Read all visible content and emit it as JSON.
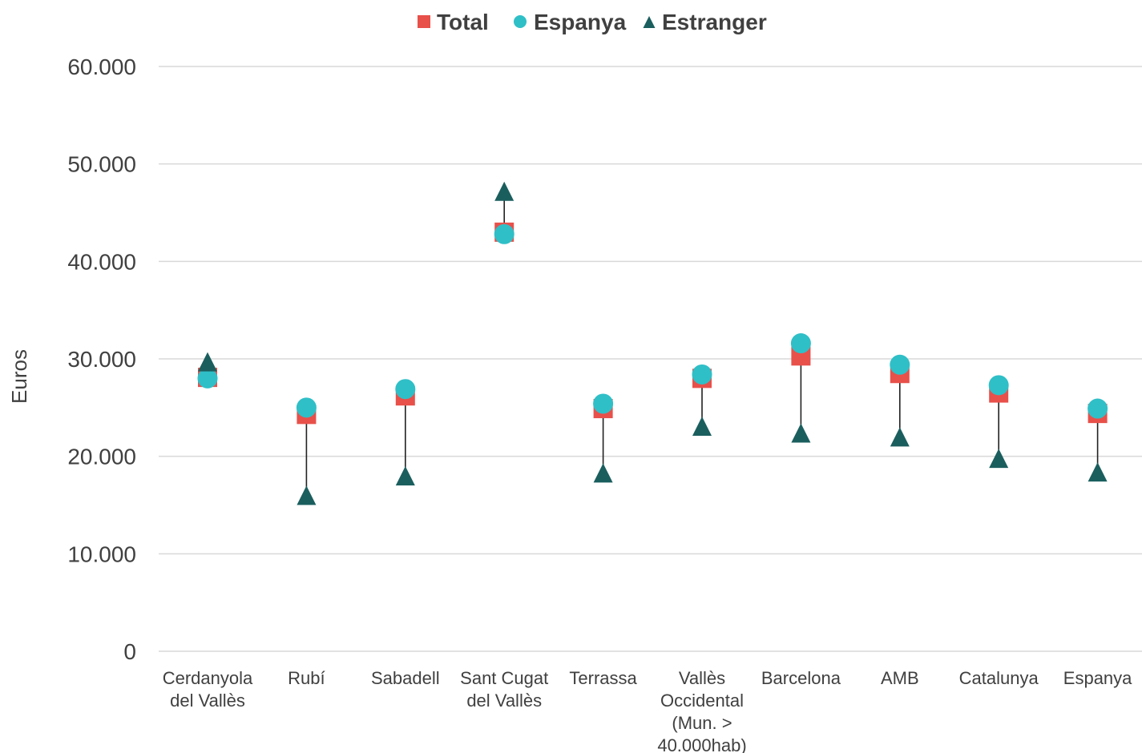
{
  "chart_data": {
    "type": "scatter",
    "ylabel": "Euros",
    "ylim": [
      0,
      60000
    ],
    "yticks": [
      0,
      10000,
      20000,
      30000,
      40000,
      50000,
      60000
    ],
    "ytick_labels": [
      "0",
      "10.000",
      "20.000",
      "30.000",
      "40.000",
      "50.000",
      "60.000"
    ],
    "grid": true,
    "legend_position": "top-center",
    "categories": [
      "Cerdanyola del Vallès",
      "Rubí",
      "Sabadell",
      "Sant Cugat del Vallès",
      "Terrassa",
      "Vallès Occidental (Mun. > 40.000hab)",
      "Barcelona",
      "AMB",
      "Catalunya",
      "Espanya"
    ],
    "category_label_lines": [
      [
        "Cerdanyola",
        "del Vallès"
      ],
      [
        "Rubí"
      ],
      [
        "Sabadell"
      ],
      [
        "Sant Cugat",
        "del Vallès"
      ],
      [
        "Terrassa"
      ],
      [
        "Vallès",
        "Occidental",
        "(Mun. >",
        "40.000hab)"
      ],
      [
        "Barcelona"
      ],
      [
        "AMB"
      ],
      [
        "Catalunya"
      ],
      [
        "Espanya"
      ]
    ],
    "series": [
      {
        "name": "Total",
        "marker": "square",
        "color": "#e8504a",
        "values": [
          28100,
          24300,
          26200,
          43000,
          24900,
          28000,
          30300,
          28500,
          26500,
          24400
        ]
      },
      {
        "name": "Espanya",
        "marker": "circle",
        "color": "#2fbfc7",
        "values": [
          28000,
          25000,
          26900,
          42800,
          25400,
          28400,
          31600,
          29400,
          27300,
          24900
        ]
      },
      {
        "name": "Estranger",
        "marker": "triangle",
        "color": "#1b5e5e",
        "values": [
          29500,
          15800,
          17800,
          47000,
          18100,
          22900,
          22200,
          21800,
          19600,
          18200
        ]
      }
    ],
    "range_line_color": "#222222",
    "grid_color": "#d9d9d9"
  }
}
